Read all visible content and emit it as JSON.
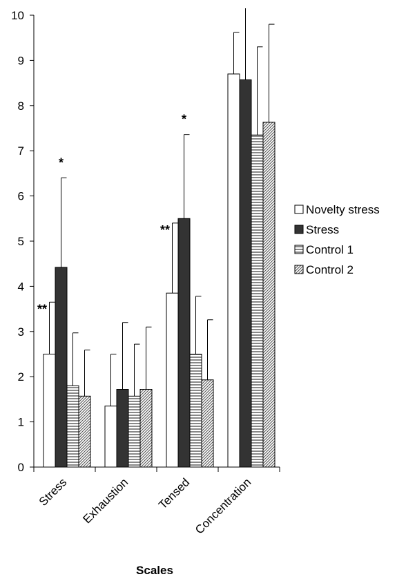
{
  "chart_data": {
    "type": "bar",
    "title": "",
    "xlabel": "Scales",
    "ylabel": "",
    "ylim": [
      0,
      10
    ],
    "yticks": [
      "0",
      "1",
      "2",
      "3",
      "4",
      "5",
      "6",
      "7",
      "8",
      "9",
      "10"
    ],
    "categories": [
      "Stress",
      "Exhaustion",
      "Tensed",
      "Concentration"
    ],
    "grid": false,
    "legend_position": "right",
    "series": [
      {
        "name": "Novelty stress",
        "fill": "white",
        "values": [
          2.5,
          1.35,
          3.85,
          8.7
        ],
        "errors": [
          1.15,
          1.15,
          1.55,
          0.92
        ],
        "significance": [
          "**",
          "",
          "**",
          ""
        ]
      },
      {
        "name": "Stress",
        "fill": "dark",
        "values": [
          4.42,
          1.72,
          5.5,
          8.57
        ],
        "errors": [
          1.98,
          1.48,
          1.86,
          1.6
        ],
        "significance": [
          "*",
          "",
          "*",
          ""
        ]
      },
      {
        "name": "Control 1",
        "fill": "horizontal-lines",
        "values": [
          1.8,
          1.57,
          2.5,
          7.35
        ],
        "errors": [
          1.17,
          1.15,
          1.28,
          1.95
        ],
        "significance": [
          "",
          "",
          "",
          ""
        ]
      },
      {
        "name": "Control 2",
        "fill": "diagonal-lines",
        "values": [
          1.57,
          1.72,
          1.93,
          7.63
        ],
        "errors": [
          1.02,
          1.38,
          1.33,
          2.17
        ],
        "significance": [
          "",
          "",
          "",
          ""
        ]
      }
    ],
    "colors": {
      "dark": "#333333",
      "stroke": "#000000",
      "pattern": "#555555"
    }
  }
}
